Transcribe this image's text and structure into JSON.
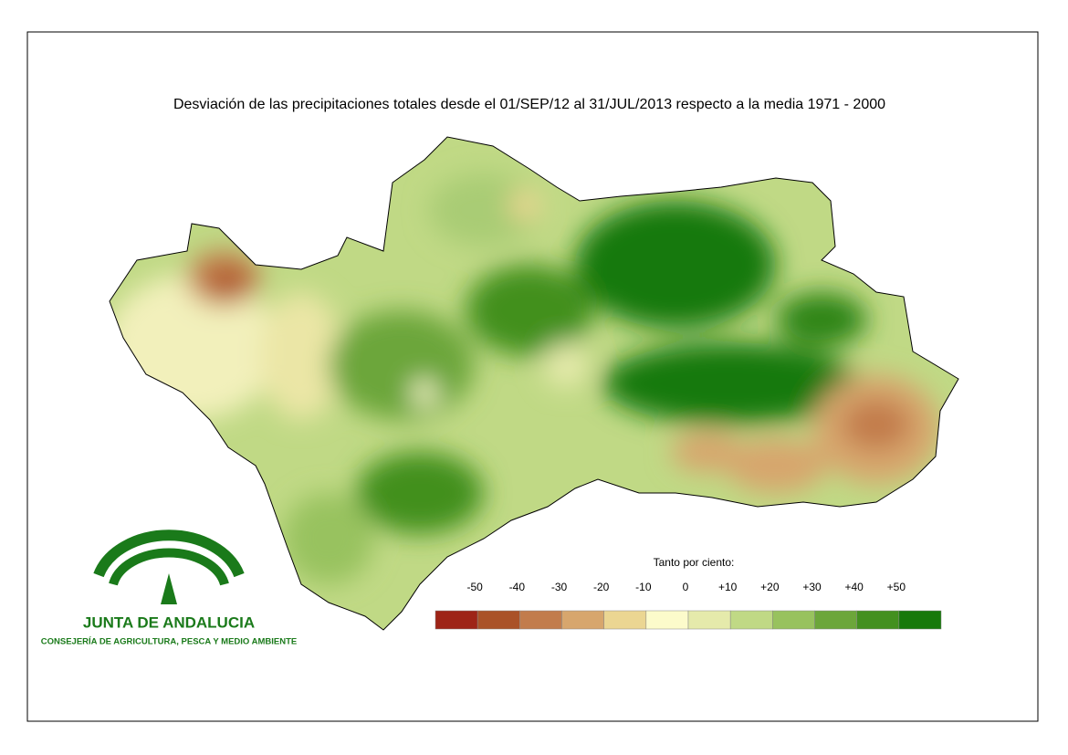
{
  "title": "Desviación de las precipitaciones totales desde el 01/SEP/12 al 31/JUL/2013 respecto a la media 1971 - 2000",
  "legend": {
    "label": "Tanto por ciento:",
    "ticks": [
      "-50",
      "-40",
      "-30",
      "-20",
      "-10",
      "0",
      "+10",
      "+20",
      "+30",
      "+40",
      "+50"
    ],
    "colors": [
      "#9e2417",
      "#aa5228",
      "#c27c4c",
      "#d7a66d",
      "#ebd692",
      "#fcfbcb",
      "#e5eaab",
      "#c0d985",
      "#98c25e",
      "#6ca63a",
      "#43901f",
      "#17790b"
    ]
  },
  "logo": {
    "name": "JUNTA DE ANDALUCIA",
    "department": "CONSEJERÍA DE AGRICULTURA, PESCA Y MEDIO AMBIENTE"
  }
}
